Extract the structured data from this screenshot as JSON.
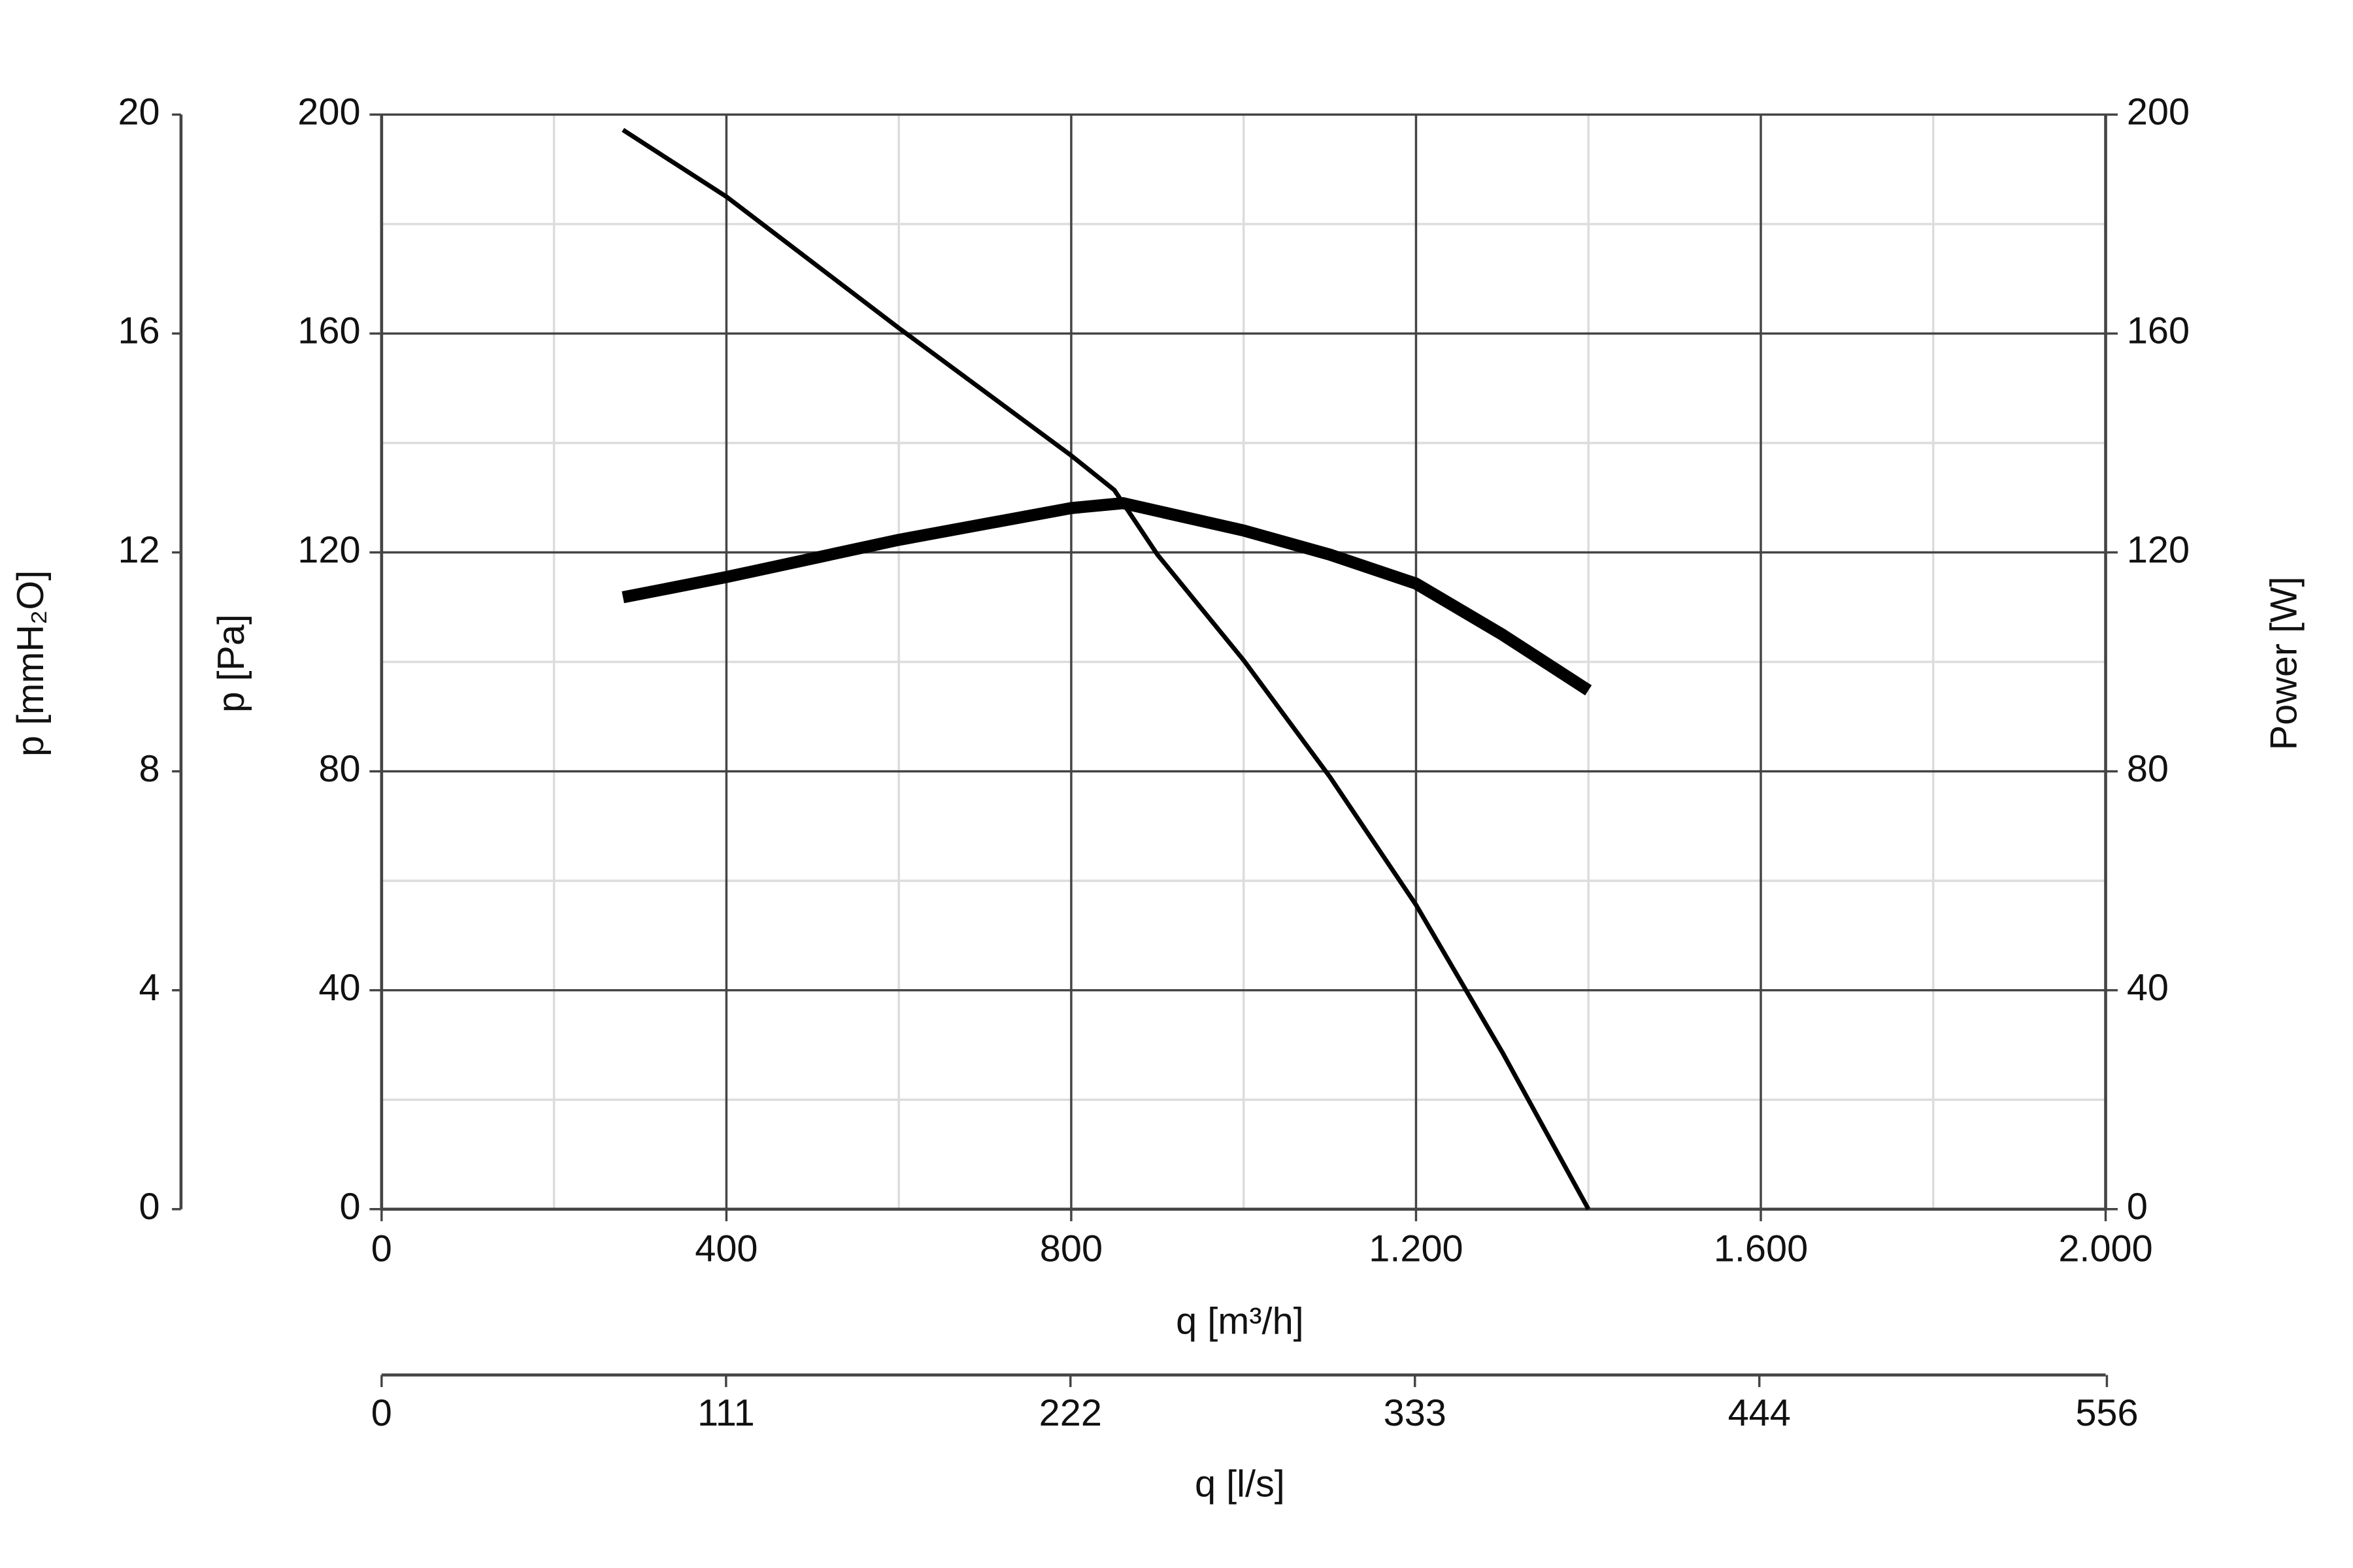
{
  "chart_data": {
    "type": "line",
    "xlabel": "q [m³/h]",
    "ylabel": "p [Pa]",
    "y2label": "Power [W]",
    "y3label": "p [mmH₂O]",
    "x2label": "q [l/s]",
    "xlim": [
      0,
      2000
    ],
    "xticks": [
      0,
      400,
      800,
      {
        "value": 1200,
        "label": "1.200"
      },
      {
        "value": 1600,
        "label": "1.600"
      },
      {
        "value": 2000,
        "label": "2.000"
      }
    ],
    "xminorticks": [
      200,
      600,
      1000,
      1400,
      1800
    ],
    "ylim": [
      0,
      200
    ],
    "yticks": [
      0,
      40,
      80,
      120,
      160,
      200
    ],
    "yminorticks": [
      20,
      60,
      100,
      140,
      180
    ],
    "y2lim": [
      0,
      200
    ],
    "y2ticks": [
      0,
      40,
      80,
      120,
      160,
      200
    ],
    "y3lim": [
      0,
      20
    ],
    "y3ticks": [
      0,
      4,
      8,
      12,
      16,
      20
    ],
    "x2lim": [
      0,
      555.6
    ],
    "x2ticks": [
      0,
      111,
      222,
      333,
      444,
      556
    ],
    "grid": true,
    "series": [
      {
        "color": "#000000",
        "width": 3,
        "axis": "y",
        "x": [
          280,
          400,
          600,
          800,
          850,
          900,
          1000,
          1100,
          1200,
          1300,
          1400
        ],
        "values": [
          197.2,
          185,
          161,
          137.7,
          131.4,
          119.6,
          100.3,
          79,
          55.6,
          28.7,
          0
        ]
      },
      {
        "color": "#000000",
        "width": 8,
        "axis": "y2",
        "x": [
          280,
          400,
          600,
          800,
          860,
          1000,
          1100,
          1200,
          1300,
          1400
        ],
        "values": [
          111.8,
          115.5,
          122.3,
          128.1,
          129,
          124,
          119.6,
          114.3,
          105,
          94.8
        ]
      }
    ]
  }
}
